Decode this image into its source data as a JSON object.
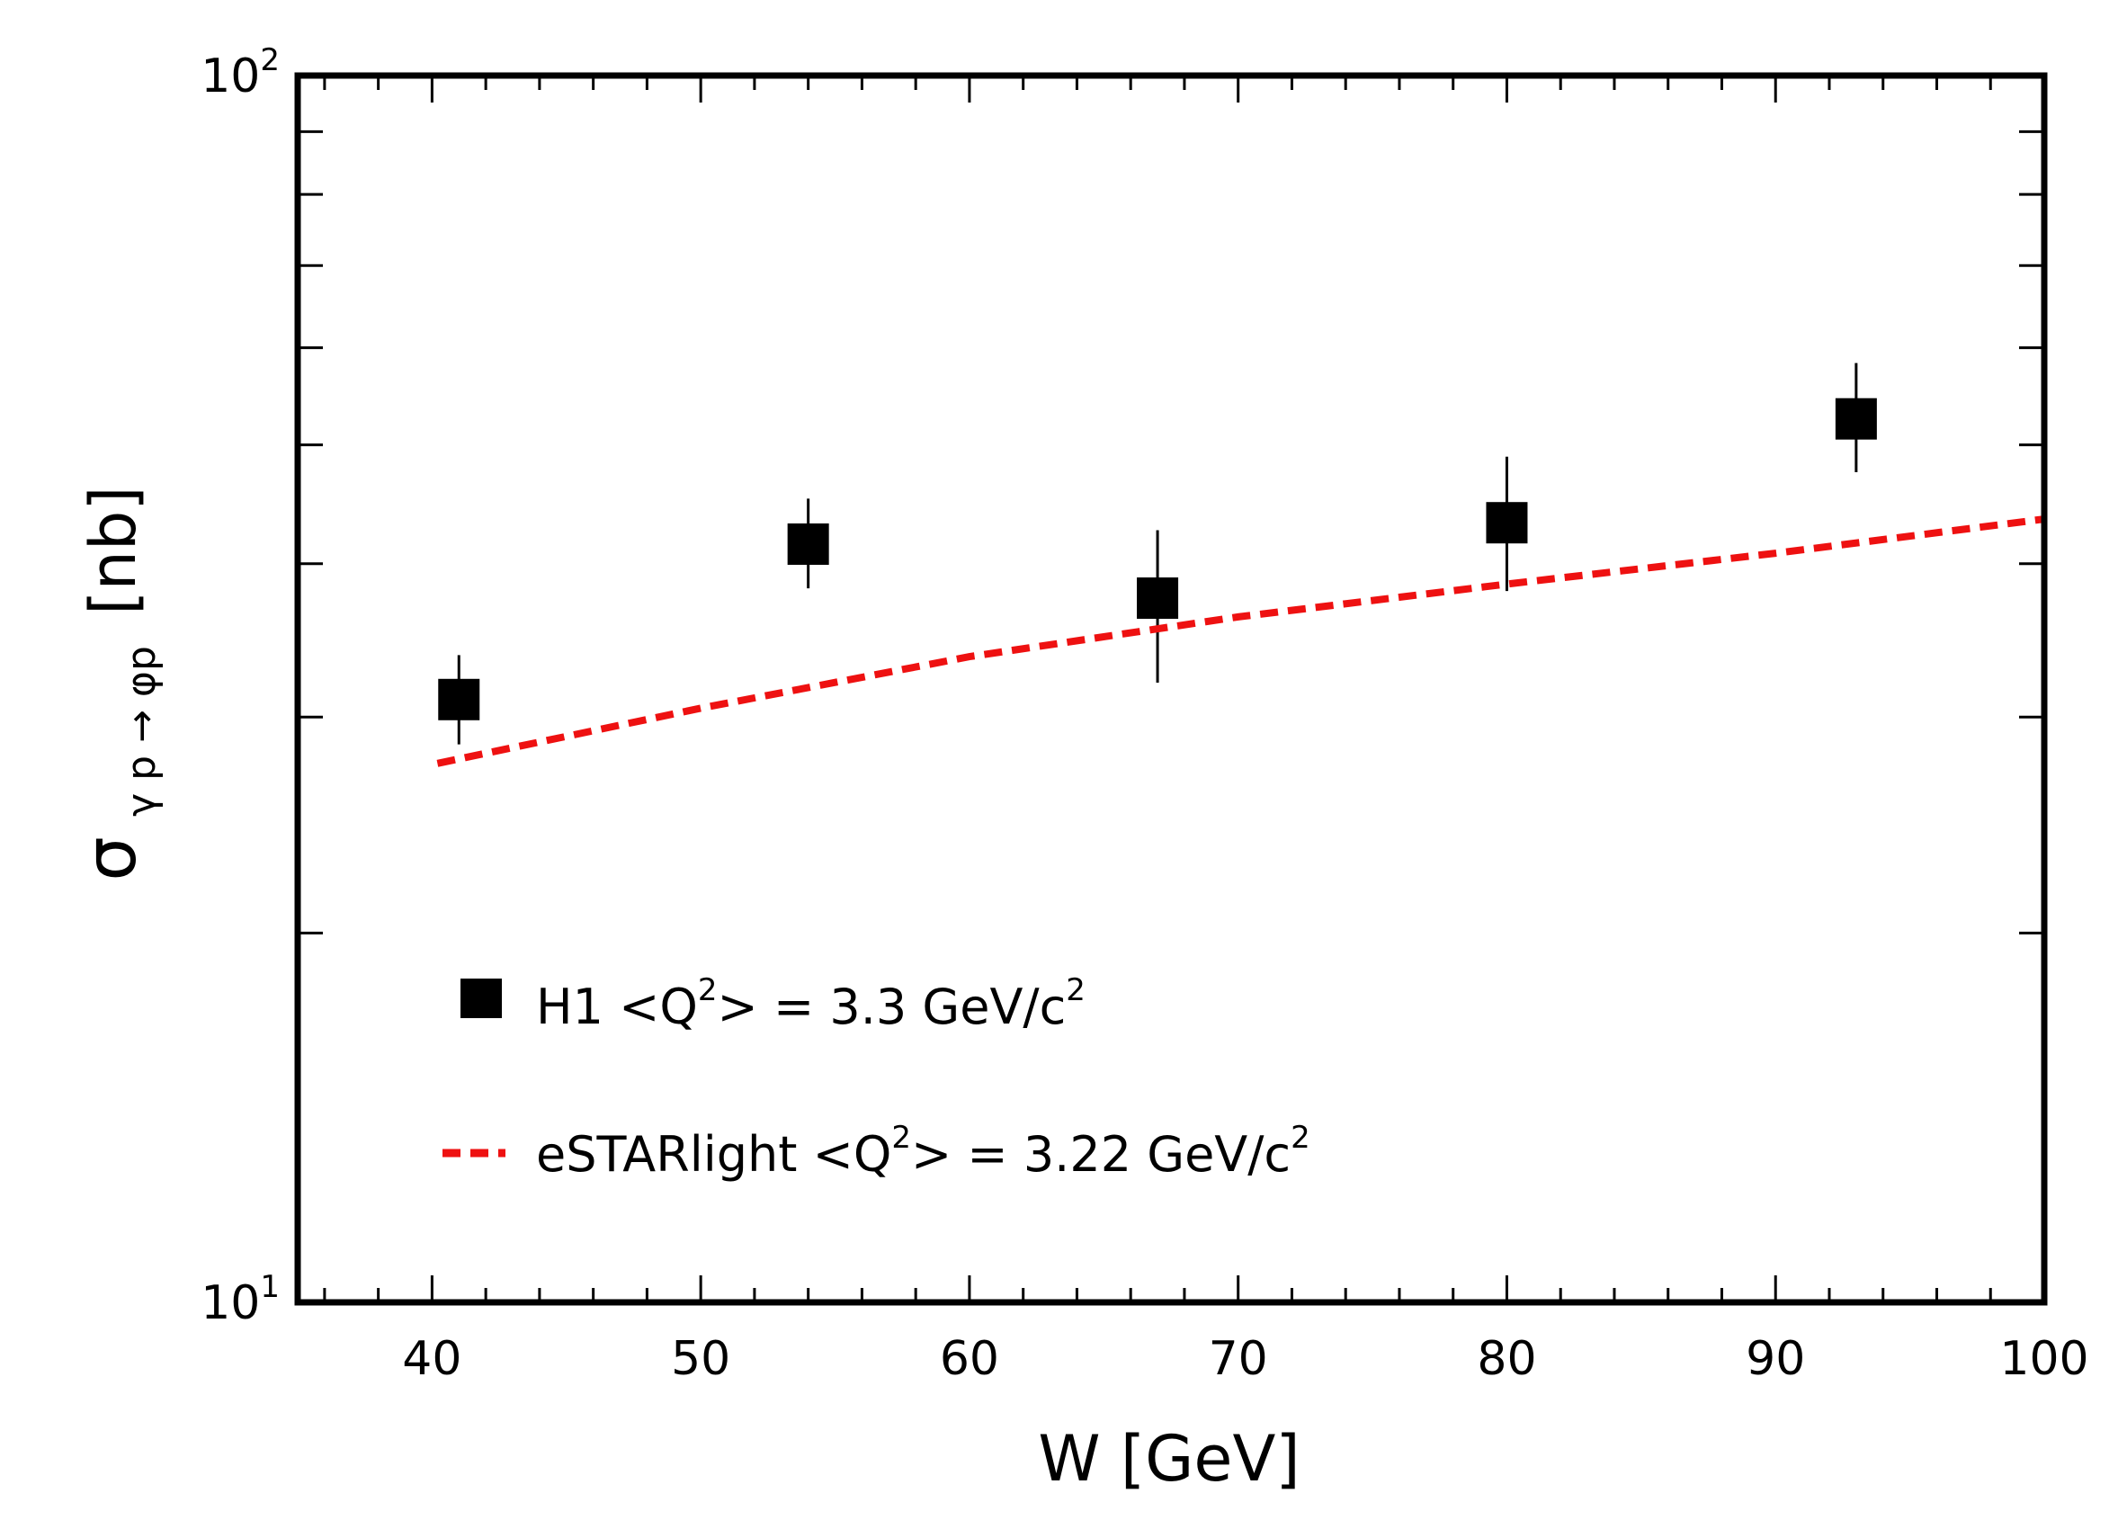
{
  "chart_data": {
    "type": "scatter",
    "xlabel": "W [GeV]",
    "ylabel": {
      "symbol": "σ",
      "subscript": "γ p → φp",
      "unit": "[nb]"
    },
    "xlim": [
      35,
      100
    ],
    "ylim": [
      10,
      100
    ],
    "yscale": "log",
    "x_ticks": [
      "40",
      "50",
      "60",
      "70",
      "80",
      "90",
      "100"
    ],
    "y_ticks": [
      {
        "base": "10",
        "exp": "1"
      },
      {
        "base": "10",
        "exp": "2"
      }
    ],
    "series": [
      {
        "name": "H1 <Q²> = 3.3 GeV/c²",
        "legend_main": "H1 <Q",
        "legend_sup1": "2",
        "legend_mid": "> = 3.3 GeV/c",
        "legend_sup2": "2",
        "style": "square-marker",
        "color": "#000000",
        "points": [
          {
            "x": 41,
            "y": 31.0,
            "ylow": 28.5,
            "yhigh": 33.7
          },
          {
            "x": 54,
            "y": 41.5,
            "ylow": 38.2,
            "yhigh": 45.2
          },
          {
            "x": 67,
            "y": 37.5,
            "ylow": 32.0,
            "yhigh": 42.6
          },
          {
            "x": 80,
            "y": 43.2,
            "ylow": 38.0,
            "yhigh": 48.9
          },
          {
            "x": 93,
            "y": 52.5,
            "ylow": 47.5,
            "yhigh": 58.3
          }
        ]
      },
      {
        "name": "eSTARlight <Q²> = 3.22 GeV/c²",
        "legend_main": "eSTARlight <Q",
        "legend_sup1": "2",
        "legend_mid": "> = 3.22 GeV/c",
        "legend_sup2": "2",
        "style": "dashed-line",
        "color": "#ee1111",
        "points": [
          {
            "x": 40.2,
            "y": 27.5
          },
          {
            "x": 50,
            "y": 30.5
          },
          {
            "x": 60,
            "y": 33.6
          },
          {
            "x": 70,
            "y": 36.2
          },
          {
            "x": 80,
            "y": 38.5
          },
          {
            "x": 90,
            "y": 40.8
          },
          {
            "x": 100,
            "y": 43.5
          }
        ]
      }
    ]
  }
}
